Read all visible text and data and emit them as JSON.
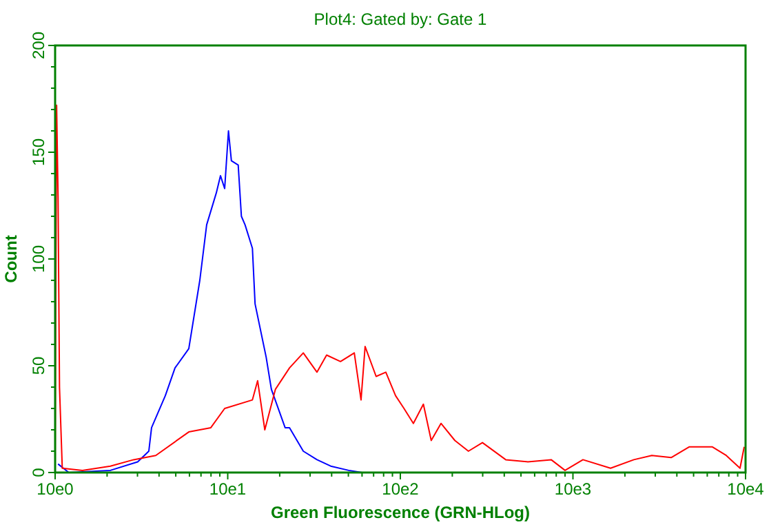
{
  "chart_data": {
    "type": "line",
    "title": "Plot4:  Gated by: Gate 1",
    "xlabel": "Green Fluorescence (GRN-HLog)",
    "ylabel": "Count",
    "log": "x",
    "xlim": [
      10,
      100000
    ],
    "ylim": [
      0,
      200
    ],
    "xticks": [
      {
        "value": 10,
        "label": "10e0"
      },
      {
        "value": 20,
        "label": null
      },
      {
        "value": 30,
        "label": null
      },
      {
        "value": 40,
        "label": null
      },
      {
        "value": 50,
        "label": null
      },
      {
        "value": 60,
        "label": null
      },
      {
        "value": 70,
        "label": null
      },
      {
        "value": 80,
        "label": null
      },
      {
        "value": 90,
        "label": null
      },
      {
        "value": 100,
        "label": "10e1"
      },
      {
        "value": 200,
        "label": null
      },
      {
        "value": 300,
        "label": null
      },
      {
        "value": 400,
        "label": null
      },
      {
        "value": 500,
        "label": null
      },
      {
        "value": 600,
        "label": null
      },
      {
        "value": 700,
        "label": null
      },
      {
        "value": 800,
        "label": null
      },
      {
        "value": 900,
        "label": null
      },
      {
        "value": 1000,
        "label": "10e2"
      },
      {
        "value": 2000,
        "label": null
      },
      {
        "value": 3000,
        "label": null
      },
      {
        "value": 4000,
        "label": null
      },
      {
        "value": 5000,
        "label": null
      },
      {
        "value": 6000,
        "label": null
      },
      {
        "value": 7000,
        "label": null
      },
      {
        "value": 8000,
        "label": null
      },
      {
        "value": 9000,
        "label": null
      },
      {
        "value": 10000,
        "label": "10e3"
      },
      {
        "value": 20000,
        "label": null
      },
      {
        "value": 30000,
        "label": null
      },
      {
        "value": 40000,
        "label": null
      },
      {
        "value": 50000,
        "label": null
      },
      {
        "value": 60000,
        "label": null
      },
      {
        "value": 70000,
        "label": null
      },
      {
        "value": 80000,
        "label": null
      },
      {
        "value": 90000,
        "label": null
      },
      {
        "value": 100000,
        "label": "10e4"
      }
    ],
    "yticks": [
      0,
      {
        "value": 10,
        "label": null
      },
      {
        "value": 20,
        "label": null
      },
      {
        "value": 30,
        "label": null
      },
      {
        "value": 40,
        "label": null
      },
      50,
      {
        "value": 60,
        "label": null
      },
      {
        "value": 70,
        "label": null
      },
      {
        "value": 80,
        "label": null
      },
      {
        "value": 90,
        "label": null
      },
      100,
      {
        "value": 110,
        "label": null
      },
      {
        "value": 120,
        "label": null
      },
      {
        "value": 130,
        "label": null
      },
      {
        "value": 140,
        "label": null
      },
      150,
      {
        "value": 160,
        "label": null
      },
      {
        "value": 170,
        "label": null
      },
      {
        "value": 180,
        "label": null
      },
      {
        "value": 190,
        "label": null
      },
      200
    ],
    "grid": false,
    "marker": "none",
    "line_style": "solid",
    "series": [
      {
        "color": "#0000ff",
        "x": [
          10.4,
          12,
          20.9,
          30.1,
          34.9,
          36.2,
          43.5,
          49.5,
          59.5,
          68.9,
          75.5,
          85.9,
          90.8,
          96,
          101,
          105,
          115,
          120,
          126,
          139,
          144,
          167,
          179,
          215,
          228,
          274,
          329,
          395,
          502,
          600
        ],
        "values": [
          4,
          0,
          1,
          5,
          10,
          21,
          36,
          49,
          58,
          90,
          116,
          131,
          139,
          133,
          160,
          146,
          144,
          120,
          116,
          105,
          79,
          54,
          39,
          21,
          21,
          10,
          6,
          3,
          1,
          0
        ]
      },
      {
        "color": "#ff0000",
        "x": [
          10,
          10.2,
          10.4,
          10.6,
          11,
          14.4,
          20.9,
          28.5,
          38.3,
          59.5,
          79.8,
          96,
          139,
          149,
          164,
          189,
          228,
          274,
          329,
          374,
          450,
          541,
          592,
          625,
          724,
          824,
          938,
          1050,
          1190,
          1360,
          1510,
          1720,
          2070,
          2480,
          2990,
          4080,
          5480,
          7480,
          9000,
          11430,
          16520,
          22540,
          28640,
          37070,
          47100,
          64270,
          77270,
          92900,
          98200
        ],
        "values": [
          0,
          172,
          129,
          40,
          2,
          1,
          3,
          6,
          8,
          19,
          21,
          30,
          34,
          43,
          20,
          39,
          49,
          56,
          47,
          55,
          52,
          56,
          34,
          59,
          45,
          47,
          36,
          30,
          23,
          32,
          15,
          23,
          15,
          10,
          14,
          6,
          5,
          6,
          1,
          6,
          2,
          6,
          8,
          7,
          12,
          12,
          8,
          2,
          12
        ]
      }
    ]
  }
}
